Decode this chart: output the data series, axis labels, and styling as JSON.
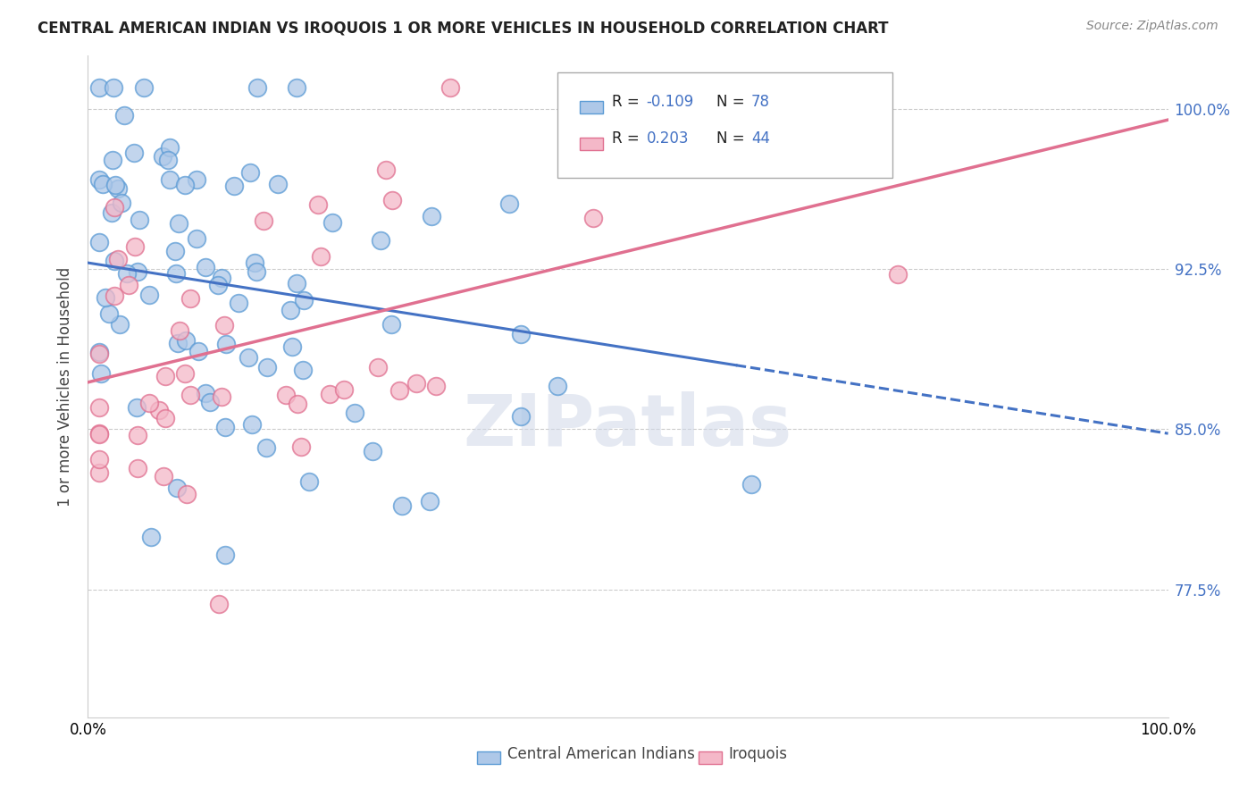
{
  "title": "CENTRAL AMERICAN INDIAN VS IROQUOIS 1 OR MORE VEHICLES IN HOUSEHOLD CORRELATION CHART",
  "source": "Source: ZipAtlas.com",
  "ylabel": "1 or more Vehicles in Household",
  "legend_label1": "Central American Indians",
  "legend_label2": "Iroquois",
  "R1": -0.109,
  "N1": 78,
  "R2": 0.203,
  "N2": 44,
  "color_blue_fill": "#aec8e8",
  "color_blue_edge": "#5b9bd5",
  "color_blue_line": "#4472c4",
  "color_pink_fill": "#f4b8c8",
  "color_pink_edge": "#e07090",
  "color_pink_line": "#e07090",
  "xmin": 0.0,
  "xmax": 1.0,
  "ymin": 0.715,
  "ymax": 1.025,
  "ytick_values": [
    0.775,
    0.85,
    0.925,
    1.0
  ],
  "ytick_labels": [
    "77.5%",
    "85.0%",
    "92.5%",
    "100.0%"
  ],
  "blue_trend_y_start": 0.928,
  "blue_trend_y_end": 0.848,
  "blue_trend_solid_end": 0.6,
  "pink_trend_y_start": 0.872,
  "pink_trend_y_end": 0.995,
  "watermark": "ZIPatlas",
  "bg_color": "#ffffff",
  "grid_color": "#cccccc",
  "title_fontsize": 12,
  "axis_fontsize": 12,
  "tick_fontsize": 12,
  "legend_color": "#4472c4"
}
